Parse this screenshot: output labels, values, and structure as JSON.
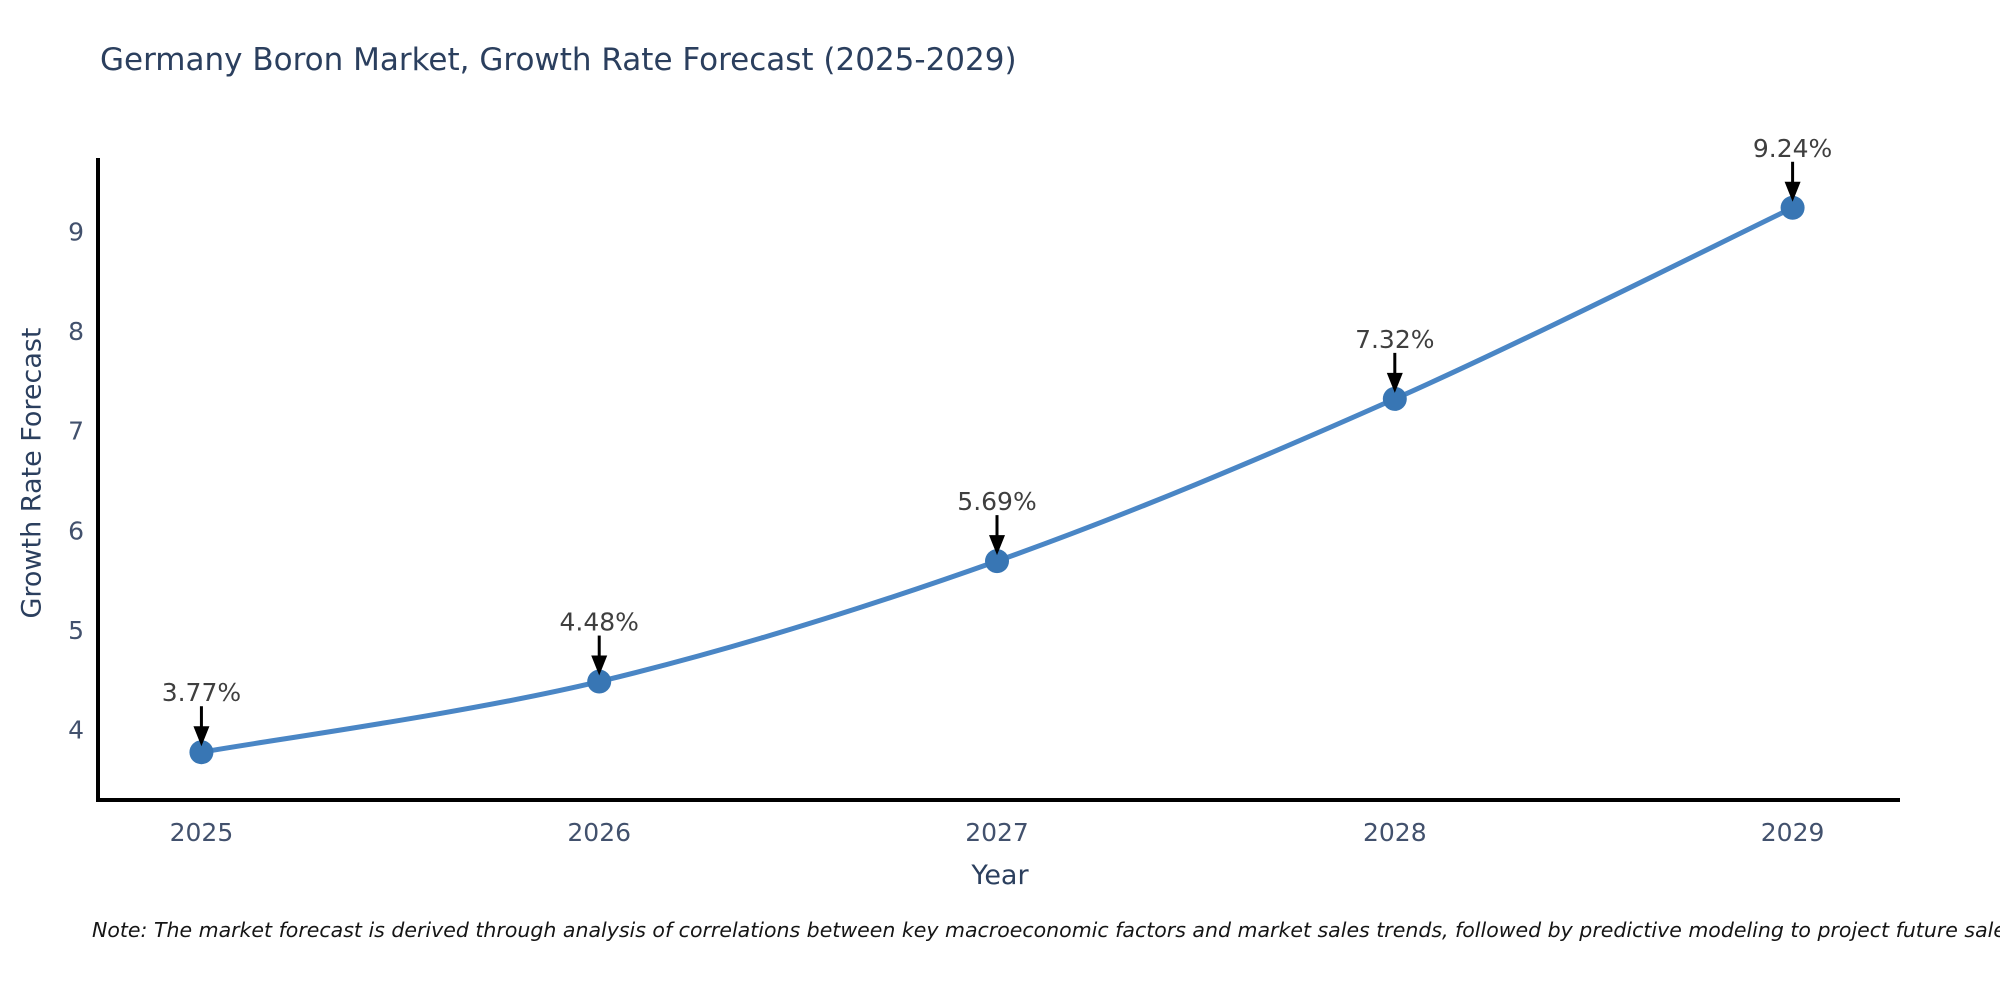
{
  "title": {
    "text": "Germany Boron Market, Growth Rate Forecast (2025-2029)",
    "color": "#2b3f5e"
  },
  "chart_data": {
    "type": "line",
    "title": "Germany Boron Market, Growth Rate Forecast (2025-2029)",
    "x": [
      2025,
      2026,
      2027,
      2028,
      2029
    ],
    "series": [
      {
        "name": "Growth Rate Forecast",
        "values": [
          3.77,
          4.48,
          5.69,
          7.32,
          9.24
        ],
        "labels": [
          "3.77%",
          "4.48%",
          "5.69%",
          "7.32%",
          "9.24%"
        ]
      }
    ],
    "xlabel": "Year",
    "ylabel": "Growth Rate Forecast",
    "xticks": [
      "2025",
      "2026",
      "2027",
      "2028",
      "2029"
    ],
    "yticks": [
      4,
      5,
      6,
      7,
      8,
      9
    ],
    "xlim": [
      2024.74,
      2029.27
    ],
    "ylim": [
      3.29,
      9.72
    ],
    "grid": false,
    "legend": "none",
    "line_shape": "spline",
    "colors": {
      "line": "#4a86c5",
      "marker": "#3876b4",
      "axis": "#000000",
      "tick_label": "#42516d",
      "axis_title": "#2b3f5e",
      "annotation_text": "#3f3f3f",
      "annotation_arrow": "#000000"
    }
  },
  "note": {
    "text": "Note: The market forecast is derived through analysis of correlations between key macroeconomic factors and market sales trends, followed by predictive modeling to project future sales."
  }
}
